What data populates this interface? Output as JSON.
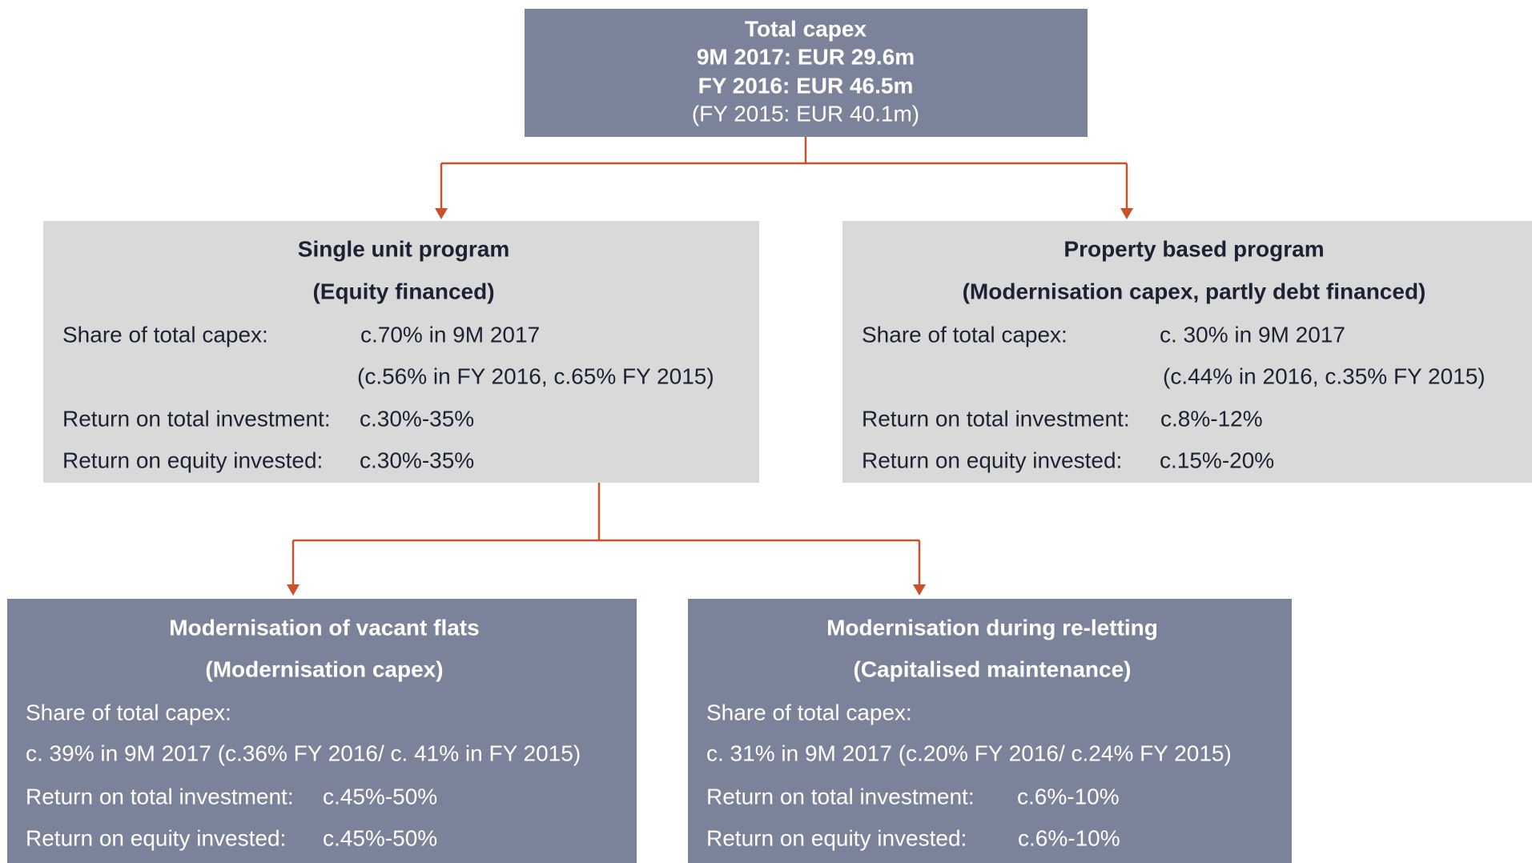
{
  "nodes": [
    {
      "lines": [
        "Total capex",
        "9M 2017: EUR 29.6m",
        "FY 2016: EUR 46.5m",
        "(FY 2015: EUR 40.1m)"
      ]
    },
    {
      "title": "Single unit program",
      "subtitle": "(Equity financed)",
      "rows": [
        {
          "label": "Share of total capex:",
          "value": "c.70% in 9M 2017"
        },
        {
          "value": "(c.56% in FY 2016, c.65% FY 2015)"
        },
        {
          "label": "Return on total investment:",
          "value": "c.30%-35%"
        },
        {
          "label": "Return on equity invested:",
          "value": "c.30%-35%"
        }
      ]
    },
    {
      "title": "Property based program",
      "subtitle": "(Modernisation capex, partly debt financed)",
      "rows": [
        {
          "label": "Share of total capex:",
          "value": "c. 30% in 9M 2017"
        },
        {
          "value": "(c.44% in 2016, c.35% FY 2015)"
        },
        {
          "label": "Return on total investment:",
          "value": "c.8%-12%"
        },
        {
          "label": "Return on equity invested:",
          "value": "c.15%-20%"
        }
      ]
    },
    {
      "title": "Modernisation of vacant flats",
      "subtitle": "(Modernisation capex)",
      "rows": [
        {
          "label": "Share of total capex:"
        },
        {
          "label": "c. 39% in 9M 2017 (c.36% FY 2016/ c. 41% in FY 2015)"
        },
        {
          "label": "Return on total investment:",
          "value": "c.45%-50%"
        },
        {
          "label": "Return on equity invested:",
          "value": "c.45%-50%"
        }
      ]
    },
    {
      "title": "Modernisation during re-letting",
      "subtitle": "(Capitalised maintenance)",
      "rows": [
        {
          "label": "Share of total capex:"
        },
        {
          "label": "c. 31% in 9M 2017 (c.20% FY 2016/ c.24% FY 2015)"
        },
        {
          "label": "Return on total investment:",
          "value": "c.6%-10%"
        },
        {
          "label": "Return on equity invested:",
          "value": "c.6%-10%"
        }
      ]
    }
  ]
}
